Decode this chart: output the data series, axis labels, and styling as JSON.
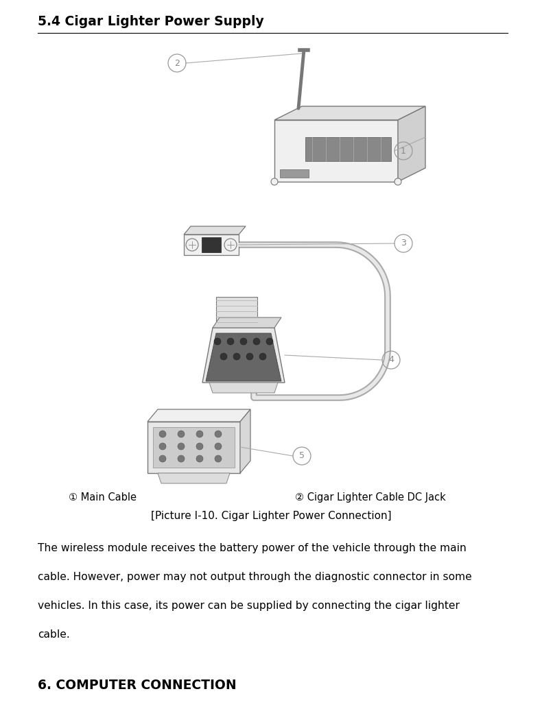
{
  "title": "5.4 Cigar Lighter Power Supply",
  "title_fontsize": 13.5,
  "caption_line1_left": "① Main Cable",
  "caption_line1_right": "② Cigar Lighter Cable DC Jack",
  "caption_line2": "[Picture I-10. Cigar Lighter Power Connection]",
  "body_lines": [
    "The wireless module receives the battery power of the vehicle through the main",
    "cable. However, power may not output through the diagnostic connector in some",
    "vehicles. In this case, its power can be supplied by connecting the cigar lighter",
    "cable."
  ],
  "footer_title": "6. COMPUTER CONNECTION",
  "footer_title_fontsize": 13.5,
  "bg_color": "#ffffff",
  "text_color": "#000000",
  "fig_width": 7.9,
  "fig_height": 10.53,
  "dpi": 100
}
